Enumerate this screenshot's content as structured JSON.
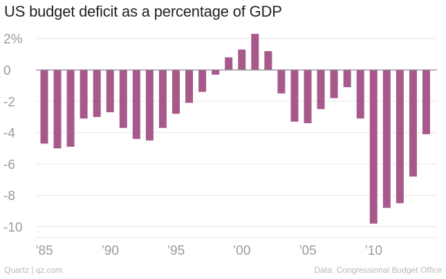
{
  "title": "US budget deficit as a percentage of GDP",
  "footer": {
    "left": "Quartz | qz.com",
    "right": "Data: Congressional Budget Office"
  },
  "colors": {
    "bar": "#a8598b",
    "zero_line": "#888888",
    "grid": "#e6e6e6",
    "ticks": "#9a9a9a"
  },
  "chart_data": {
    "type": "bar",
    "title": "US budget deficit as a percentage of GDP",
    "xlabel": "",
    "ylabel": "",
    "ylim": [
      -10.9,
      2.8
    ],
    "grid": true,
    "y_ticks": [
      {
        "value": 2,
        "label": "2%"
      },
      {
        "value": 0,
        "label": "0"
      },
      {
        "value": -2,
        "label": "-2"
      },
      {
        "value": -4,
        "label": "-4"
      },
      {
        "value": -6,
        "label": "-6"
      },
      {
        "value": -8,
        "label": "-8"
      },
      {
        "value": -10,
        "label": "-10"
      }
    ],
    "x_ticks": [
      {
        "year": 1985,
        "label": "’85"
      },
      {
        "year": 1990,
        "label": "’90"
      },
      {
        "year": 1995,
        "label": "’95"
      },
      {
        "year": 2000,
        "label": "’00"
      },
      {
        "year": 2005,
        "label": "’05"
      },
      {
        "year": 2010,
        "label": "’10"
      }
    ],
    "categories": [
      1985,
      1986,
      1987,
      1988,
      1989,
      1990,
      1991,
      1992,
      1993,
      1994,
      1995,
      1996,
      1997,
      1998,
      1999,
      2000,
      2001,
      2002,
      2003,
      2004,
      2005,
      2006,
      2007,
      2008,
      2009,
      2010,
      2011,
      2012,
      2013,
      2014
    ],
    "values": [
      -4.7,
      -5.0,
      -4.9,
      -3.1,
      -3.0,
      -2.7,
      -3.7,
      -4.4,
      -4.5,
      -3.7,
      -2.8,
      -2.1,
      -1.4,
      -0.3,
      0.8,
      1.3,
      2.3,
      1.2,
      -1.5,
      -3.3,
      -3.4,
      -2.5,
      -1.8,
      -1.1,
      -3.1,
      -9.8,
      -8.8,
      -8.5,
      -6.8,
      -4.1
    ]
  }
}
